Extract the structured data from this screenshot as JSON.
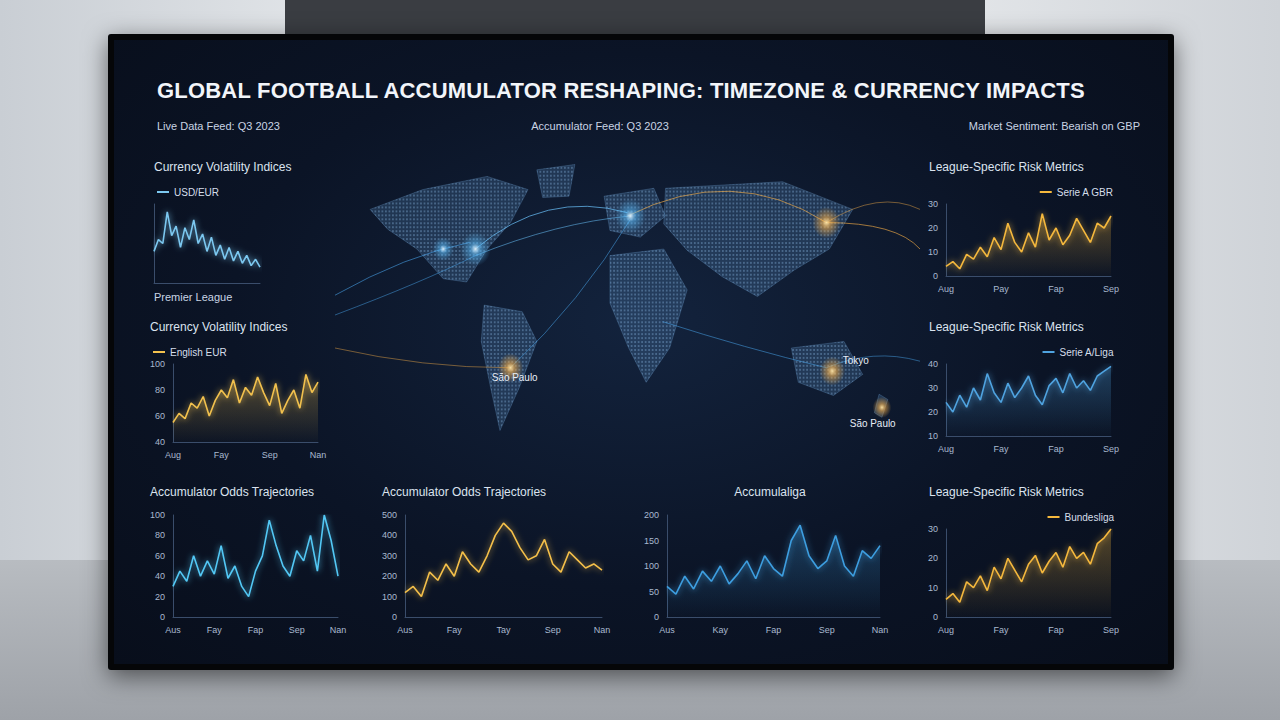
{
  "header": {
    "title": "GLOBAL FOOTBALL ACCUMULATOR RESHAPING: TIMEZONE & CURRENCY IMPACTS",
    "left": "Live Data Feed: Q3 2023",
    "center": "Accumulator Feed: Q3 2023",
    "right": "Market Sentiment: Bearish on GBP"
  },
  "map": {
    "labels": [
      "São Paulo",
      "Tokyo",
      "São Paulo"
    ]
  },
  "chart_data": [
    {
      "type": "line",
      "title": "Currency Volatility Indices",
      "annotation": "Premier League",
      "legend": "top-left",
      "grid": false,
      "tick_labels": false,
      "categories": [
        null,
        null,
        null,
        null,
        null,
        null,
        null,
        null,
        null,
        null,
        null,
        null,
        null,
        null,
        null,
        null,
        null,
        null,
        null,
        null,
        null,
        null,
        null,
        null,
        null
      ],
      "series": [
        {
          "name": "USD/EUR",
          "color": "#7cc8f0",
          "values": [
            40,
            55,
            50,
            90,
            60,
            72,
            45,
            70,
            55,
            80,
            50,
            62,
            40,
            58,
            35,
            48,
            30,
            45,
            28,
            40,
            25,
            35,
            22,
            30,
            20
          ]
        }
      ],
      "ylim": [
        0,
        100
      ],
      "yticks": [
        0,
        100
      ]
    },
    {
      "type": "area",
      "title": "Currency Volatility Indices",
      "legend": "top-left",
      "grid": false,
      "categories": [
        "Aug",
        null,
        null,
        null,
        null,
        null,
        null,
        null,
        "Fay",
        null,
        null,
        null,
        null,
        null,
        null,
        null,
        "Sep",
        null,
        null,
        null,
        null,
        null,
        null,
        null,
        "Nan"
      ],
      "series": [
        {
          "name": "English EUR",
          "color": "#f2c14e",
          "values": [
            55,
            62,
            58,
            70,
            66,
            75,
            60,
            72,
            80,
            74,
            88,
            70,
            82,
            76,
            90,
            78,
            68,
            85,
            62,
            72,
            80,
            66,
            92,
            78,
            86
          ]
        }
      ],
      "ylim": [
        40,
        100
      ],
      "yticks": [
        40,
        60,
        80,
        100
      ]
    },
    {
      "type": "area",
      "title": "League-Specific Risk Metrics",
      "legend": "top-right",
      "grid": false,
      "categories": [
        "Aug",
        null,
        null,
        null,
        null,
        null,
        null,
        null,
        "Pay",
        null,
        null,
        null,
        null,
        null,
        null,
        null,
        "Fap",
        null,
        null,
        null,
        null,
        null,
        null,
        null,
        "Sep"
      ],
      "series": [
        {
          "name": "Serie A GBR",
          "color": "#f5b83d",
          "values": [
            4,
            6,
            3,
            9,
            7,
            12,
            8,
            16,
            11,
            22,
            14,
            10,
            18,
            12,
            26,
            15,
            20,
            13,
            17,
            24,
            19,
            14,
            22,
            20,
            25
          ]
        }
      ],
      "ylim": [
        0,
        30
      ],
      "yticks": [
        0,
        10,
        20,
        30
      ]
    },
    {
      "type": "area",
      "title": "League-Specific Risk Metrics",
      "legend": "top-right",
      "grid": false,
      "categories": [
        "Aug",
        null,
        null,
        null,
        null,
        null,
        null,
        null,
        "Fay",
        null,
        null,
        null,
        null,
        null,
        null,
        null,
        "Fap",
        null,
        null,
        null,
        null,
        null,
        null,
        null,
        "Sep"
      ],
      "series": [
        {
          "name": "Serie A/Liga",
          "color": "#4fa3e0",
          "values": [
            24,
            20,
            27,
            22,
            30,
            25,
            36,
            28,
            24,
            32,
            26,
            30,
            35,
            27,
            23,
            31,
            34,
            28,
            36,
            30,
            33,
            29,
            35,
            37,
            39
          ]
        }
      ],
      "ylim": [
        10,
        40
      ],
      "yticks": [
        10,
        20,
        30,
        40
      ]
    },
    {
      "type": "area",
      "title": "League-Specific Risk Metrics",
      "legend": "top-right",
      "grid": false,
      "categories": [
        "Aug",
        null,
        null,
        null,
        null,
        null,
        null,
        null,
        "Fay",
        null,
        null,
        null,
        null,
        null,
        null,
        null,
        "Fap",
        null,
        null,
        null,
        null,
        null,
        null,
        null,
        "Sep"
      ],
      "series": [
        {
          "name": "Bundesliga",
          "color": "#f5b83d",
          "values": [
            6,
            8,
            5,
            12,
            10,
            14,
            9,
            17,
            13,
            20,
            16,
            12,
            18,
            21,
            15,
            19,
            22,
            17,
            24,
            20,
            22,
            18,
            25,
            27,
            30
          ]
        }
      ],
      "ylim": [
        0,
        30
      ],
      "yticks": [
        0,
        10,
        20,
        30
      ]
    },
    {
      "type": "line",
      "title": "Accumulator Odds Trajectories",
      "grid": false,
      "categories": [
        "Aus",
        null,
        null,
        null,
        null,
        null,
        "Fay",
        null,
        null,
        null,
        null,
        null,
        "Fap",
        null,
        null,
        null,
        null,
        null,
        "Sep",
        null,
        null,
        null,
        null,
        null,
        "Nan"
      ],
      "series": [
        {
          "color": "#52c8f5",
          "values": [
            30,
            45,
            35,
            60,
            40,
            55,
            42,
            70,
            38,
            50,
            30,
            20,
            45,
            60,
            95,
            70,
            50,
            40,
            65,
            55,
            80,
            45,
            100,
            75,
            40
          ]
        }
      ],
      "ylim": [
        0,
        100
      ],
      "yticks": [
        0,
        20,
        40,
        60,
        80,
        100
      ]
    },
    {
      "type": "line",
      "title": "Accumulator Odds Trajectories",
      "grid": false,
      "categories": [
        "Aus",
        null,
        null,
        null,
        null,
        null,
        "Fay",
        null,
        null,
        null,
        null,
        null,
        "Tay",
        null,
        null,
        null,
        null,
        null,
        "Sep",
        null,
        null,
        null,
        null,
        null,
        "Nan"
      ],
      "series": [
        {
          "color": "#f5c04a",
          "values": [
            120,
            150,
            100,
            220,
            180,
            260,
            200,
            320,
            260,
            220,
            300,
            400,
            460,
            420,
            340,
            280,
            300,
            380,
            260,
            220,
            320,
            280,
            240,
            260,
            230
          ]
        }
      ],
      "ylim": [
        0,
        500
      ],
      "yticks": [
        0,
        100,
        200,
        300,
        400,
        500
      ]
    },
    {
      "type": "area",
      "title": "Accumulaliga",
      "grid": false,
      "categories": [
        "Aus",
        null,
        null,
        null,
        null,
        null,
        "Kay",
        null,
        null,
        null,
        null,
        null,
        "Fap",
        null,
        null,
        null,
        null,
        null,
        "Sep",
        null,
        null,
        null,
        null,
        null,
        "Nan"
      ],
      "series": [
        {
          "color": "#3d9ee0",
          "values": [
            60,
            45,
            80,
            55,
            90,
            70,
            100,
            65,
            85,
            110,
            75,
            120,
            95,
            80,
            150,
            180,
            120,
            95,
            110,
            160,
            100,
            80,
            130,
            115,
            140
          ]
        }
      ],
      "ylim": [
        0,
        200
      ],
      "yticks": [
        0,
        50,
        100,
        150,
        200
      ]
    }
  ]
}
